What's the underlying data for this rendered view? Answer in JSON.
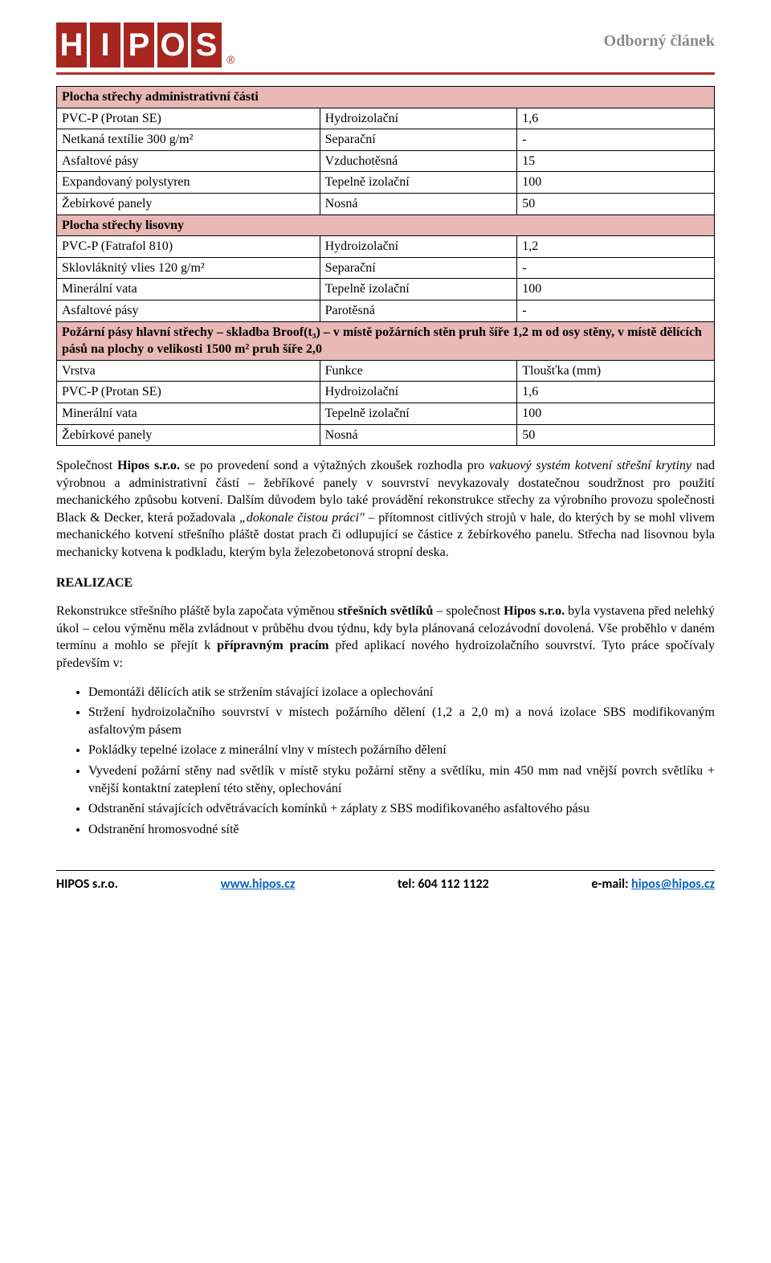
{
  "header": {
    "logo_letters": [
      "H",
      "I",
      "P",
      "O",
      "S"
    ],
    "reg_mark": "®",
    "right_text": "Odborný článek"
  },
  "table": {
    "groups": [
      {
        "title": "Plocha střechy administrativní části",
        "title_colspan": 3,
        "rows": [
          [
            "PVC-P (Protan SE)",
            "Hydroizolační",
            "1,6"
          ],
          [
            "Netkaná textílie 300 g/m²",
            "Separační",
            "-"
          ],
          [
            "Asfaltové pásy",
            "Vzduchotěsná",
            "15"
          ],
          [
            "Expandovaný polystyren",
            "Tepelně izolační",
            "100"
          ],
          [
            "Žebírkové panely",
            "Nosná",
            "50"
          ]
        ]
      },
      {
        "title": "Plocha střechy lisovny",
        "title_colspan": 3,
        "rows": [
          [
            "PVC-P (Fatrafol 810)",
            "Hydroizolační",
            "1,2"
          ],
          [
            "Sklovláknitý vlies 120 g/m²",
            "Separační",
            "-"
          ],
          [
            "Minerální vata",
            "Tepelně izolační",
            "100"
          ],
          [
            "Asfaltové pásy",
            "Parotěsná",
            "-"
          ]
        ]
      },
      {
        "title": "Požární pásy hlavní střechy – skladba Broof(t₃) – v místě požárních stěn pruh šíře 1,2 m od osy stěny, v místě dělících pásů na plochy o velikosti 1500 m² pruh šíře 2,0",
        "title_colspan": 3,
        "header_row": [
          "Vrstva",
          "Funkce",
          "Tloušťka (mm)"
        ],
        "rows": [
          [
            "PVC-P (Protan SE)",
            "Hydroizolační",
            "1,6"
          ],
          [
            "Minerální vata",
            "Tepelně izolační",
            "100"
          ],
          [
            "Žebírkové panely",
            "Nosná",
            "50"
          ]
        ]
      }
    ]
  },
  "paragraphs": {
    "p1_a": "Společnost ",
    "p1_b": "Hipos s.r.o.",
    "p1_c": " se po provedení sond a výtažných zkoušek rozhodla pro ",
    "p1_d": "vakuový systém kotvení střešní krytiny",
    "p1_e": " nad výrobnou a administrativní částí – žebříkové panely v souvrství nevykazovaly dostatečnou soudržnost pro použití mechanického způsobu kotvení. Dalším důvodem bylo také provádění rekonstrukce střechy za výrobního provozu společnosti Black & Decker, která požadovala ",
    "p1_f": "„dokonale čistou práci\"",
    "p1_g": " – přítomnost citlivých strojů v hale, do kterých by se mohl vlivem mechanického kotvení střešního pláště dostat prach či odlupující se částice z žebírkového panelu. Střecha nad lisovnou byla mechanicky kotvena k podkladu, kterým byla železobetonová stropní deska.",
    "realizace_head": "REALIZACE",
    "p2_a": "Rekonstrukce střešního pláště byla započata výměnou ",
    "p2_b": "střešních světlíků",
    "p2_c": " – společnost ",
    "p2_d": "Hipos s.r.o.",
    "p2_e": " byla vystavena před nelehký úkol – celou výměnu měla zvládnout v průběhu dvou týdnu, kdy byla plánovaná celozávodní dovolená. Vše proběhlo v daném termínu a mohlo se přejít k ",
    "p2_f": "přípravným pracím",
    "p2_g": " před aplikací nového hydroizolačního souvrství. Tyto práce spočívaly především v:"
  },
  "bullets": [
    "Demontáži dělících atik se stržením stávající izolace a oplechování",
    "Stržení hydroizolačního souvrství v místech požárního dělení (1,2 a 2,0 m) a nová izolace SBS modifikovaným asfaltovým pásem",
    "Pokládky tepelné izolace z minerální vlny v místech požárního dělení",
    "Vyvedení požární stěny nad světlík v místě styku požární stěny a světlíku, min 450 mm nad vnější povrch světlíku + vnější kontaktní zateplení této stěny, oplechování",
    "Odstranění stávajících odvětrávacích komínků + záplaty z SBS modifikovaného asfaltového pásu",
    "Odstranění hromosvodné sítě"
  ],
  "footer": {
    "company": "HIPOS s.r.o.",
    "web": "www.hipos.cz",
    "tel": "tel: 604 112 1122",
    "email_label": "e-mail: ",
    "email": "hipos@hipos.cz"
  },
  "colors": {
    "brand_red": "#a52720",
    "section_pink": "#e9b9b5",
    "header_gray": "#8a8a8a",
    "link_blue": "#0563c1"
  }
}
